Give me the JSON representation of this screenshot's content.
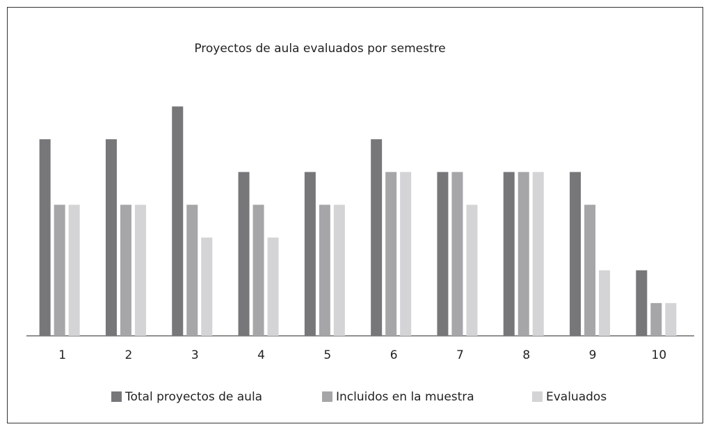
{
  "chart_data": {
    "type": "bar",
    "title": "Proyectos de aula evaluados por semestre",
    "categories": [
      "1",
      "2",
      "3",
      "4",
      "5",
      "6",
      "7",
      "8",
      "9",
      "10"
    ],
    "series": [
      {
        "name": "Total proyectos de aula",
        "color": "#77777a",
        "values": [
          6,
          6,
          7,
          5,
          5,
          6,
          5,
          5,
          5,
          2
        ]
      },
      {
        "name": "Incluidos en la muestra",
        "color": "#a6a6a9",
        "values": [
          4,
          4,
          4,
          4,
          4,
          5,
          5,
          5,
          4,
          1
        ]
      },
      {
        "name": "Evaluados",
        "color": "#d4d4d6",
        "values": [
          4,
          4,
          3,
          3,
          4,
          5,
          4,
          5,
          2,
          1
        ]
      }
    ],
    "ylim": [
      0,
      8
    ],
    "legend": "bottom"
  }
}
